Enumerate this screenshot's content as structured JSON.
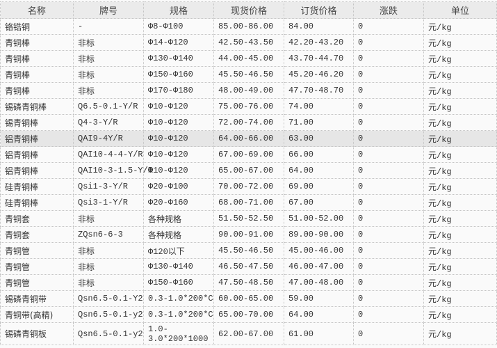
{
  "columns": [
    "名称",
    "牌号",
    "规格",
    "现货价格",
    "订货价格",
    "涨跌",
    "单位"
  ],
  "highlighted_row": 7,
  "rows": [
    [
      "铬锆铜",
      "-",
      "Φ8-Φ100",
      "85.00-86.00",
      "84.00",
      "0",
      "元/kg"
    ],
    [
      "青铜棒",
      "非标",
      "Φ14-Φ120",
      "42.50-43.50",
      "42.20-43.20",
      "0",
      "元/kg"
    ],
    [
      "青铜棒",
      "非标",
      "Φ130-Φ140",
      "44.00-45.00",
      "43.70-44.70",
      "0",
      "元/kg"
    ],
    [
      "青铜棒",
      "非标",
      "Φ150-Φ160",
      "45.50-46.50",
      "45.20-46.20",
      "0",
      "元/kg"
    ],
    [
      "青铜棒",
      "非标",
      "Φ170-Φ180",
      "48.00-49.00",
      "47.70-48.70",
      "0",
      "元/kg"
    ],
    [
      "锡磷青铜棒",
      "Q6.5-0.1-Y/R",
      "Φ10-Φ120",
      "75.00-76.00",
      "74.00",
      "0",
      "元/kg"
    ],
    [
      "锡青铜棒",
      "Q4-3-Y/R",
      "Φ10-Φ120",
      "72.00-74.00",
      "71.00",
      "0",
      "元/kg"
    ],
    [
      "铝青铜棒",
      "QAI9-4Y/R",
      "Φ10-Φ120",
      "64.00-66.00",
      "63.00",
      "0",
      "元/kg"
    ],
    [
      "铝青铜棒",
      "QAI10-4-4-Y/R",
      "Φ10-Φ120",
      "67.00-69.00",
      "66.00",
      "0",
      "元/kg"
    ],
    [
      "铝青铜棒",
      "QAI10-3-1.5-Y/R",
      "Φ10-Φ120",
      "65.00-67.00",
      "64.00",
      "0",
      "元/kg"
    ],
    [
      "硅青铜棒",
      "Qsi1-3-Y/R",
      "Φ20-Φ100",
      "70.00-72.00",
      "69.00",
      "0",
      "元/kg"
    ],
    [
      "硅青铜棒",
      "Qsi3-1-Y/R",
      "Φ20-Φ160",
      "68.00-71.00",
      "67.00",
      "0",
      "元/kg"
    ],
    [
      "青铜套",
      "非标",
      "各种规格",
      "51.50-52.50",
      "51.00-52.00",
      "0",
      "元/kg"
    ],
    [
      "青铜套",
      "ZQsn6-6-3",
      "各种规格",
      "90.00-91.00",
      "89.00-90.00",
      "0",
      "元/kg"
    ],
    [
      "青铜管",
      "非标",
      "Φ120以下",
      "45.50-46.50",
      "45.00-46.00",
      "0",
      "元/kg"
    ],
    [
      "青铜管",
      "非标",
      "Φ130-Φ140",
      "46.50-47.50",
      "46.00-47.00",
      "0",
      "元/kg"
    ],
    [
      "青铜管",
      "非标",
      "Φ150-Φ160",
      "47.50-48.50",
      "47.00-48.00",
      "0",
      "元/kg"
    ],
    [
      "锡磷青铜带",
      "Qsn6.5-0.1-Y2",
      "0.3-1.0*200*C",
      "60.00-65.00",
      "59.00",
      "0",
      "元/kg"
    ],
    [
      "青铜带(高精)",
      "Qsn6.5-0.1-y2",
      "0.3-1.0*200*C",
      "65.00-70.00",
      "64.00",
      "0",
      "元/kg"
    ],
    [
      "锡磷青铜板",
      "Qsn6.5-0.1-y2",
      "1.0-3.0*200*1000",
      "62.00-67.00",
      "61.00",
      "0",
      "元/kg"
    ]
  ]
}
